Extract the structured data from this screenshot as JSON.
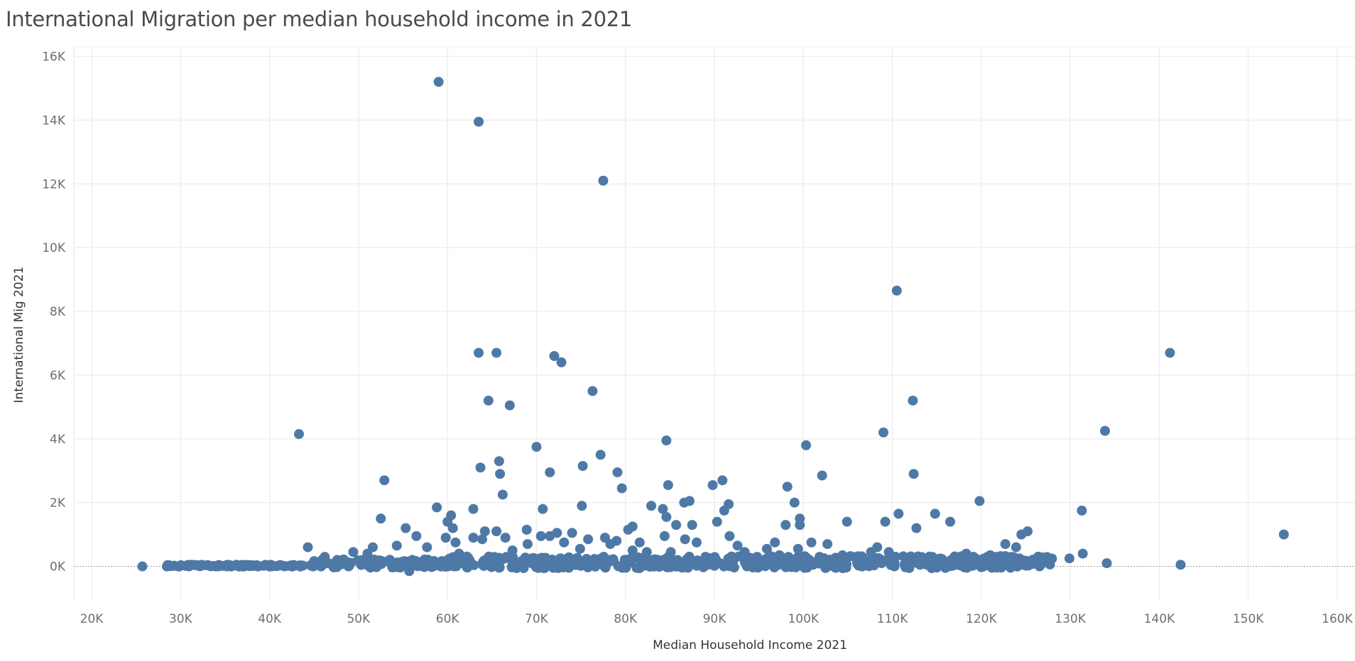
{
  "chart_data": {
    "type": "scatter",
    "title": "International Migration per median household income in 2021",
    "xlabel": "Median Household Income 2021",
    "ylabel": "International Mig 2021",
    "xlim": [
      18000,
      162000
    ],
    "ylim": [
      -1100,
      16300
    ],
    "x_ticks": [
      20000,
      30000,
      40000,
      50000,
      60000,
      70000,
      80000,
      90000,
      100000,
      110000,
      120000,
      130000,
      140000,
      150000,
      160000
    ],
    "x_tick_labels": [
      "20K",
      "30K",
      "40K",
      "50K",
      "60K",
      "70K",
      "80K",
      "90K",
      "100K",
      "110K",
      "120K",
      "130K",
      "140K",
      "150K",
      "160K"
    ],
    "y_ticks": [
      0,
      2000,
      4000,
      6000,
      8000,
      10000,
      12000,
      14000,
      16000
    ],
    "y_tick_labels": [
      "0K",
      "2K",
      "4K",
      "6K",
      "8K",
      "10K",
      "12K",
      "14K",
      "16K"
    ],
    "grid": true,
    "zero_line": true,
    "marker_color": "#4e79a7",
    "points": [
      [
        59000,
        15200
      ],
      [
        63500,
        13950
      ],
      [
        77500,
        12100
      ],
      [
        110500,
        8650
      ],
      [
        63500,
        6700
      ],
      [
        65500,
        6700
      ],
      [
        72000,
        6600
      ],
      [
        72800,
        6400
      ],
      [
        141200,
        6700
      ],
      [
        76300,
        5500
      ],
      [
        64600,
        5200
      ],
      [
        67000,
        5050
      ],
      [
        112300,
        5200
      ],
      [
        43300,
        4150
      ],
      [
        109000,
        4200
      ],
      [
        133900,
        4250
      ],
      [
        84600,
        3950
      ],
      [
        70000,
        3750
      ],
      [
        100300,
        3800
      ],
      [
        77200,
        3500
      ],
      [
        65800,
        3300
      ],
      [
        63700,
        3100
      ],
      [
        75200,
        3150
      ],
      [
        71500,
        2950
      ],
      [
        79100,
        2950
      ],
      [
        65900,
        2900
      ],
      [
        112400,
        2900
      ],
      [
        102100,
        2850
      ],
      [
        52900,
        2700
      ],
      [
        89800,
        2550
      ],
      [
        90900,
        2700
      ],
      [
        84800,
        2550
      ],
      [
        98200,
        2500
      ],
      [
        79600,
        2450
      ],
      [
        66200,
        2250
      ],
      [
        119800,
        2050
      ],
      [
        87200,
        2050
      ],
      [
        86600,
        2000
      ],
      [
        91600,
        1950
      ],
      [
        99000,
        2000
      ],
      [
        75100,
        1900
      ],
      [
        82900,
        1900
      ],
      [
        58800,
        1850
      ],
      [
        62900,
        1800
      ],
      [
        70700,
        1800
      ],
      [
        84200,
        1800
      ],
      [
        131300,
        1750
      ],
      [
        91100,
        1750
      ],
      [
        110700,
        1650
      ],
      [
        114800,
        1650
      ],
      [
        60400,
        1600
      ],
      [
        84600,
        1550
      ],
      [
        52500,
        1500
      ],
      [
        99600,
        1500
      ],
      [
        60000,
        1400
      ],
      [
        90300,
        1400
      ],
      [
        104900,
        1400
      ],
      [
        109200,
        1400
      ],
      [
        116500,
        1400
      ],
      [
        98000,
        1300
      ],
      [
        99600,
        1300
      ],
      [
        87500,
        1300
      ],
      [
        85700,
        1300
      ],
      [
        80800,
        1250
      ],
      [
        55300,
        1200
      ],
      [
        60600,
        1200
      ],
      [
        112700,
        1200
      ],
      [
        80300,
        1150
      ],
      [
        68900,
        1150
      ],
      [
        64200,
        1100
      ],
      [
        65500,
        1100
      ],
      [
        72300,
        1050
      ],
      [
        74000,
        1050
      ],
      [
        125200,
        1100
      ],
      [
        124500,
        1000
      ],
      [
        154000,
        1000
      ],
      [
        56500,
        950
      ],
      [
        59800,
        900
      ],
      [
        62900,
        900
      ],
      [
        70500,
        950
      ],
      [
        71500,
        950
      ],
      [
        77700,
        900
      ],
      [
        84400,
        950
      ],
      [
        91700,
        950
      ],
      [
        63900,
        850
      ],
      [
        66500,
        900
      ],
      [
        75800,
        850
      ],
      [
        79000,
        800
      ],
      [
        81600,
        750
      ],
      [
        86700,
        850
      ],
      [
        88000,
        750
      ],
      [
        92600,
        650
      ],
      [
        96800,
        750
      ],
      [
        100900,
        750
      ],
      [
        102700,
        700
      ],
      [
        122700,
        700
      ],
      [
        123900,
        600
      ],
      [
        108300,
        600
      ],
      [
        44300,
        600
      ],
      [
        60900,
        750
      ],
      [
        69000,
        700
      ],
      [
        73100,
        750
      ],
      [
        78300,
        700
      ],
      [
        82400,
        450
      ],
      [
        95900,
        550
      ],
      [
        99400,
        550
      ],
      [
        104400,
        350
      ],
      [
        107600,
        450
      ],
      [
        109600,
        450
      ],
      [
        118300,
        400
      ],
      [
        121000,
        350
      ],
      [
        129900,
        250
      ],
      [
        131400,
        400
      ],
      [
        118700,
        250
      ],
      [
        116600,
        200
      ],
      [
        122400,
        100
      ],
      [
        123800,
        150
      ],
      [
        124400,
        50
      ],
      [
        117400,
        50
      ],
      [
        115000,
        50
      ],
      [
        113100,
        50
      ],
      [
        110200,
        50
      ],
      [
        111600,
        50
      ],
      [
        108800,
        100
      ],
      [
        106300,
        50
      ],
      [
        103900,
        100
      ],
      [
        102400,
        50
      ],
      [
        101100,
        50
      ],
      [
        100200,
        150
      ],
      [
        120800,
        100
      ],
      [
        134100,
        100
      ],
      [
        142400,
        50
      ],
      [
        25700,
        0
      ],
      [
        55700,
        -150
      ],
      [
        46200,
        300
      ],
      [
        49400,
        450
      ],
      [
        51000,
        400
      ],
      [
        51600,
        600
      ],
      [
        54300,
        650
      ],
      [
        57700,
        600
      ],
      [
        61300,
        400
      ],
      [
        67300,
        500
      ],
      [
        74900,
        550
      ],
      [
        80800,
        500
      ],
      [
        85100,
        450
      ],
      [
        89000,
        300
      ],
      [
        93400,
        450
      ],
      [
        94800,
        300
      ],
      [
        97300,
        350
      ]
    ]
  }
}
